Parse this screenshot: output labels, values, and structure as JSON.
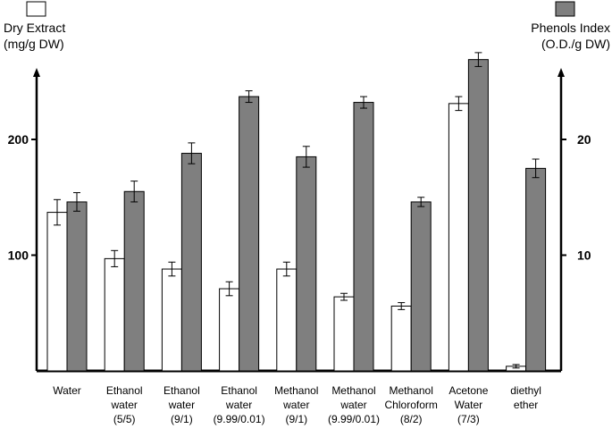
{
  "chart_data": {
    "type": "bar",
    "categories": [
      [
        "Water"
      ],
      [
        "Ethanol",
        "water",
        "(5/5)"
      ],
      [
        "Ethanol",
        "water",
        "(9/1)"
      ],
      [
        "Ethanol",
        "water",
        "(9.99/0.01)"
      ],
      [
        "Methanol",
        "water",
        "(9/1)"
      ],
      [
        "Methanol",
        "water",
        "(9.99/0.01)"
      ],
      [
        "Methanol",
        "Chloroform",
        "(8/2)"
      ],
      [
        "Acetone",
        "Water",
        "(7/3)"
      ],
      [
        "diethyl",
        "ether"
      ]
    ],
    "left_axis": {
      "label_lines": [
        "Dry Extract",
        "(mg/g DW)"
      ],
      "ticks": [
        100,
        200
      ],
      "range": [
        0,
        300
      ]
    },
    "right_axis": {
      "label_lines": [
        "Phenols Index",
        "(O.D./g DW)"
      ],
      "ticks": [
        10,
        20
      ],
      "range": [
        0,
        30
      ]
    },
    "series": [
      {
        "name": "Dry Extract",
        "axis": "left",
        "color": "#ffffff",
        "values": [
          137,
          97,
          88,
          71,
          88,
          64,
          56,
          231,
          4
        ],
        "errors": [
          11,
          7,
          6,
          6,
          6,
          3,
          3,
          6,
          1.5
        ]
      },
      {
        "name": "Phenols Index",
        "axis": "right",
        "color": "#7f7f7f",
        "values": [
          14.6,
          15.5,
          18.8,
          23.7,
          18.5,
          23.2,
          14.6,
          26.9,
          17.5
        ],
        "errors": [
          0.8,
          0.9,
          0.9,
          0.5,
          0.9,
          0.5,
          0.4,
          0.6,
          0.8
        ]
      }
    ],
    "legend": "top-left and top-right, beside each axis title"
  }
}
